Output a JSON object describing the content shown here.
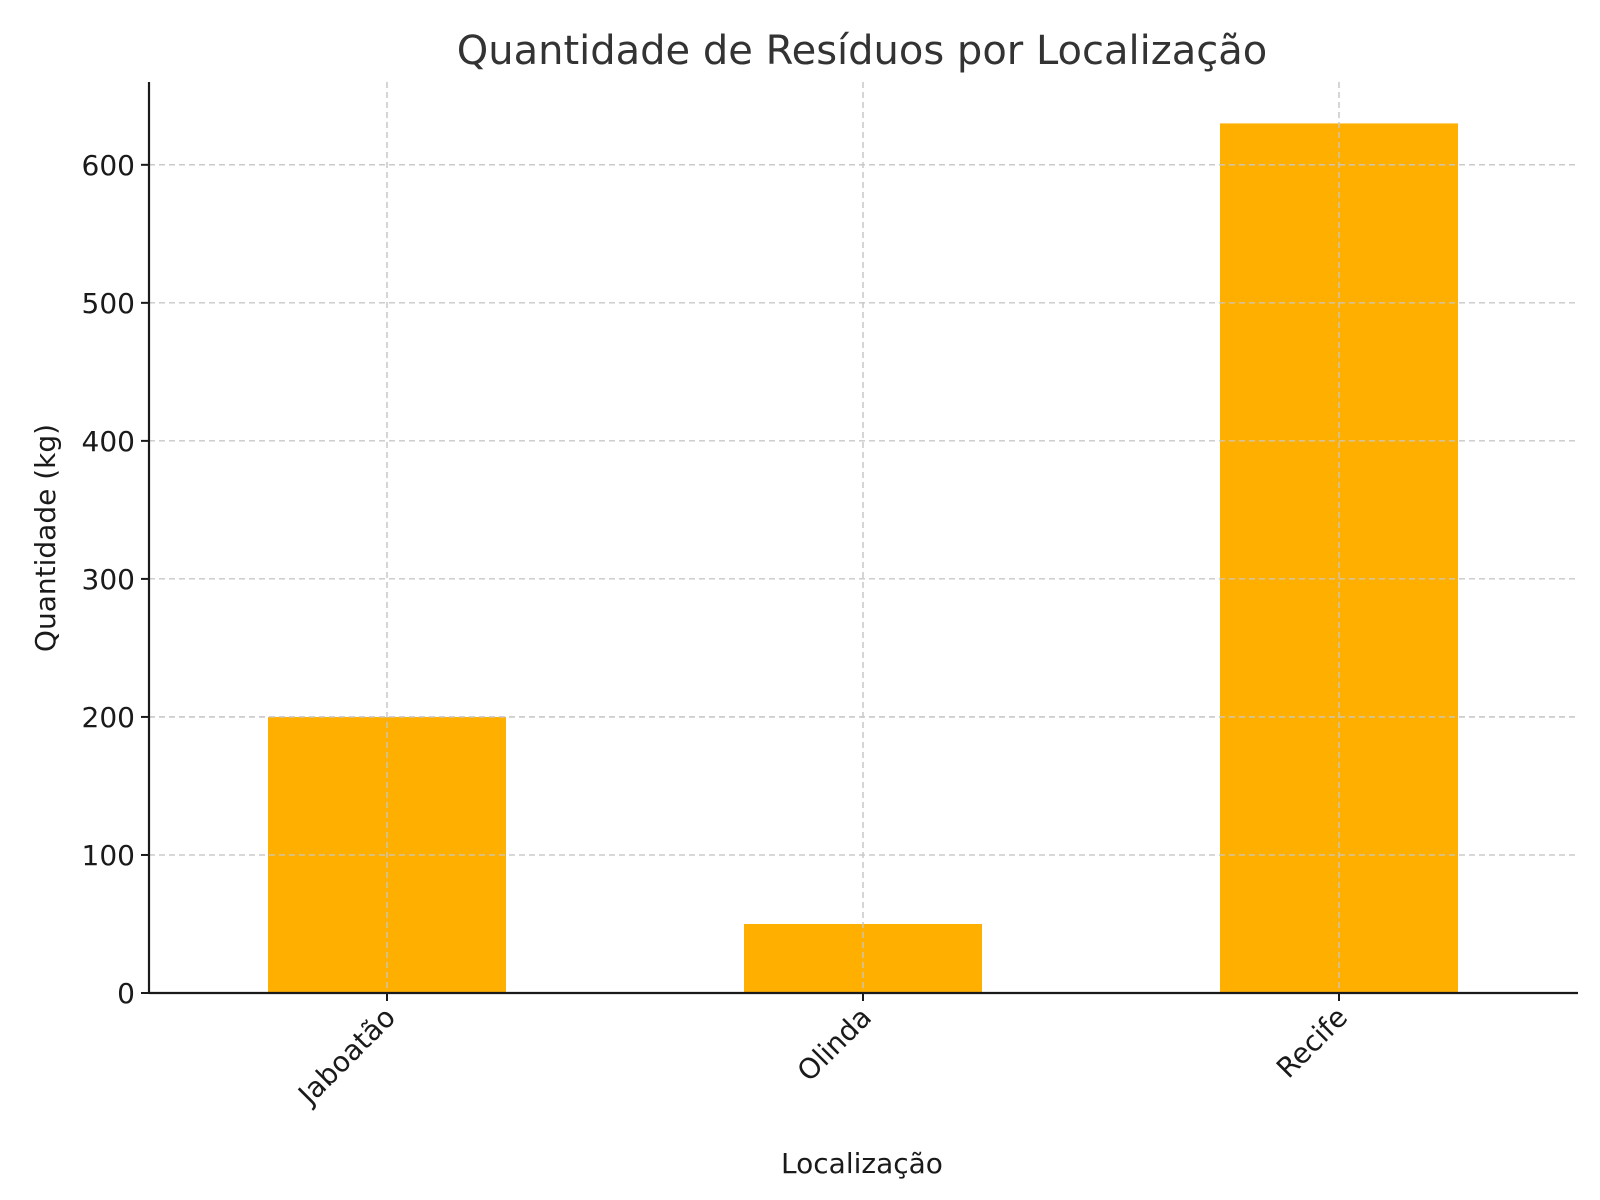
{
  "chart_data": {
    "type": "bar",
    "title": "Quantidade de Resíduos por Localização",
    "xlabel": "Localização",
    "ylabel": "Quantidade (kg)",
    "categories": [
      "Jaboatão",
      "Olinda",
      "Recife"
    ],
    "values": [
      200,
      50,
      630
    ],
    "ylim": [
      0,
      660
    ],
    "yticks": [
      0,
      100,
      200,
      300,
      400,
      500,
      600
    ],
    "grid": true,
    "bar_color": "#FFAF00"
  }
}
